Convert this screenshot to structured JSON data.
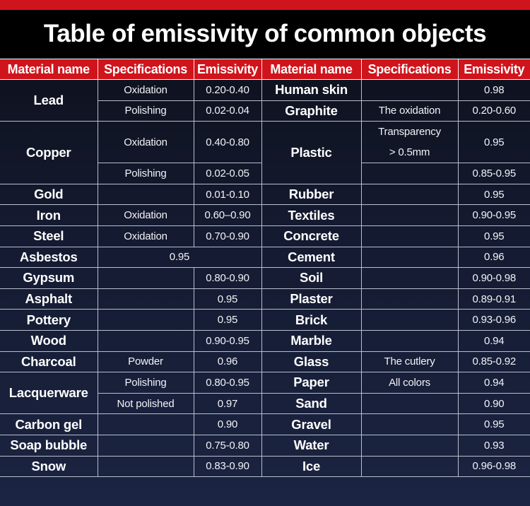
{
  "title": "Table of emissivity of common objects",
  "colors": {
    "accent_red": "#d0141c",
    "background_dark": "#0c0e17",
    "background_navy": "#1b2442",
    "text": "#ffffff"
  },
  "headers": [
    "Material name",
    "Specifications",
    "Emissivity",
    "Material name",
    "Specifications",
    "Emissivity"
  ],
  "left": {
    "lead": {
      "name": "Lead",
      "specs": [
        "Oxidation",
        "Polishing"
      ],
      "values": [
        "0.20-0.40",
        "0.02-0.04"
      ]
    },
    "copper": {
      "name": "Copper",
      "specs": [
        "Oxidation",
        "Polishing"
      ],
      "values": [
        "0.40-0.80",
        "0.02-0.05"
      ]
    },
    "rows": [
      {
        "name": "Gold",
        "spec": "",
        "value": "0.01-0.10"
      },
      {
        "name": "Iron",
        "spec": "Oxidation",
        "value": "0.60–0.90"
      },
      {
        "name": "Steel",
        "spec": "Oxidation",
        "value": "0.70-0.90"
      },
      {
        "name": "Asbestos",
        "spec": "",
        "value": "0.95"
      },
      {
        "name": "Gypsum",
        "spec": "",
        "value": "0.80-0.90"
      },
      {
        "name": "Asphalt",
        "spec": "",
        "value": "0.95"
      },
      {
        "name": "Pottery",
        "spec": "",
        "value": "0.95"
      },
      {
        "name": "Wood",
        "spec": "",
        "value": "0.90-0.95"
      },
      {
        "name": "Charcoal",
        "spec": "Powder",
        "value": "0.96"
      }
    ],
    "lacquerware": {
      "name": "Lacquerware",
      "specs": [
        "Polishing",
        "Not polished"
      ],
      "values": [
        "0.80-0.95",
        "0.97"
      ]
    },
    "tail": [
      {
        "name": "Carbon gel",
        "spec": "",
        "value": "0.90"
      },
      {
        "name": "Soap bubble",
        "spec": "",
        "value": "0.75-0.80"
      },
      {
        "name": "Snow",
        "spec": "",
        "value": "0.83-0.90"
      }
    ]
  },
  "right": {
    "head": [
      {
        "name": "Human skin",
        "spec": "",
        "value": "0.98"
      },
      {
        "name": "Graphite",
        "spec": "The oxidation",
        "value": "0.20-0.60"
      }
    ],
    "plastic": {
      "name": "Plastic",
      "spec_line1": "Transparency",
      "spec_line2": "> 0.5mm",
      "values": [
        "0.95",
        "0.85-0.95"
      ]
    },
    "rows": [
      {
        "name": "Rubber",
        "spec": "",
        "value": "0.95"
      },
      {
        "name": "Textiles",
        "spec": "",
        "value": "0.90-0.95"
      },
      {
        "name": "Concrete",
        "spec": "",
        "value": "0.95"
      },
      {
        "name": "Cement",
        "spec": "",
        "value": "0.96"
      },
      {
        "name": "Soil",
        "spec": "",
        "value": "0.90-0.98"
      },
      {
        "name": "Plaster",
        "spec": "",
        "value": "0.89-0.91"
      },
      {
        "name": "Brick",
        "spec": "",
        "value": "0.93-0.96"
      },
      {
        "name": "Marble",
        "spec": "",
        "value": "0.94"
      },
      {
        "name": "Glass",
        "spec": "The cutlery",
        "value": "0.85-0.92"
      },
      {
        "name": "Paper",
        "spec": "All colors",
        "value": "0.94"
      },
      {
        "name": "Sand",
        "spec": "",
        "value": "0.90"
      },
      {
        "name": "Gravel",
        "spec": "",
        "value": "0.95"
      },
      {
        "name": "Water",
        "spec": "",
        "value": "0.93"
      },
      {
        "name": "Ice",
        "spec": "",
        "value": "0.96-0.98"
      }
    ]
  }
}
